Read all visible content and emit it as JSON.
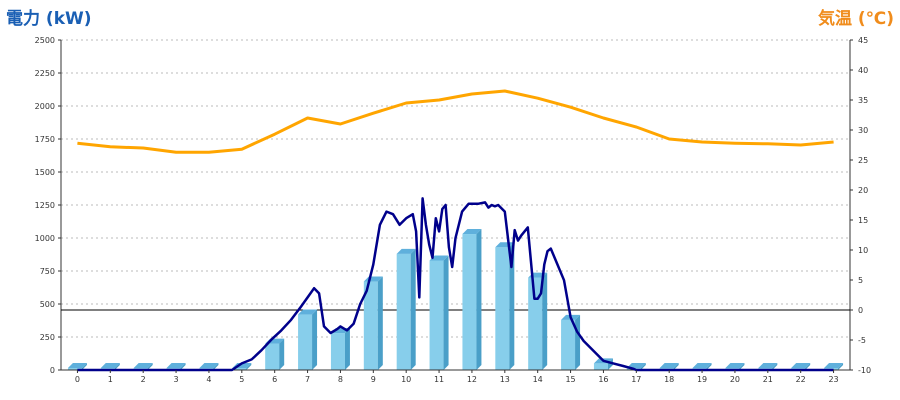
{
  "chart_data": {
    "type": "bar+line",
    "ylabel_left": "電力 (kW)",
    "ylabel_right": "気温 (℃)",
    "categories": [
      "0",
      "1",
      "2",
      "3",
      "4",
      "5",
      "6",
      "7",
      "8",
      "9",
      "10",
      "11",
      "12",
      "13",
      "14",
      "15",
      "16",
      "17",
      "18",
      "19",
      "20",
      "21",
      "22",
      "23"
    ],
    "y_left_ticks": [
      "0",
      "250",
      "500",
      "750",
      "1000",
      "1250",
      "1500",
      "1750",
      "2000",
      "2250",
      "2500"
    ],
    "y_right_ticks": [
      "-10",
      "-5",
      "0",
      "5",
      "10",
      "15",
      "20",
      "25",
      "30",
      "35",
      "40",
      "45"
    ],
    "ylim_left": [
      0,
      2500
    ],
    "ylim_right": [
      -10,
      45
    ],
    "grid": true,
    "series": [
      {
        "kind": "bar",
        "axis": "left",
        "values": [
          0,
          0,
          0,
          0,
          0,
          10,
          200,
          420,
          280,
          670,
          880,
          830,
          1030,
          930,
          700,
          380,
          50,
          0,
          0,
          0,
          0,
          0,
          0,
          0
        ]
      },
      {
        "kind": "line",
        "axis": "left",
        "x": [
          0,
          1,
          2,
          3,
          4,
          4.7,
          5,
          5.3,
          5.6,
          5.9,
          6.2,
          6.5,
          6.8,
          7.0,
          7.2,
          7.35,
          7.5,
          7.7,
          7.9,
          8.0,
          8.2,
          8.4,
          8.6,
          8.8,
          9.0,
          9.2,
          9.4,
          9.6,
          9.8,
          10.0,
          10.2,
          10.3,
          10.4,
          10.5,
          10.6,
          10.7,
          10.8,
          10.9,
          11.0,
          11.1,
          11.2,
          11.3,
          11.4,
          11.5,
          11.7,
          11.9,
          12.0,
          12.2,
          12.4,
          12.5,
          12.6,
          12.7,
          12.8,
          13.0,
          13.2,
          13.3,
          13.4,
          13.5,
          13.7,
          13.9,
          14.0,
          14.1,
          14.2,
          14.3,
          14.4,
          14.6,
          14.8,
          15.0,
          15.2,
          15.4,
          15.6,
          15.8,
          16.0,
          16.3,
          16.6,
          16.9,
          17.0,
          17.5,
          18,
          19,
          20,
          21,
          22,
          23
        ],
        "values": [
          0,
          0,
          0,
          0,
          0,
          0,
          50,
          80,
          150,
          230,
          300,
          380,
          480,
          550,
          620,
          580,
          330,
          280,
          310,
          330,
          300,
          350,
          500,
          600,
          800,
          1100,
          1200,
          1180,
          1100,
          1150,
          1180,
          1050,
          550,
          1300,
          1100,
          950,
          850,
          1150,
          1050,
          1220,
          1250,
          930,
          780,
          1000,
          1200,
          1260,
          1260,
          1260,
          1270,
          1230,
          1250,
          1240,
          1250,
          1200,
          780,
          1060,
          980,
          1020,
          1080,
          540,
          540,
          580,
          800,
          900,
          920,
          800,
          680,
          400,
          290,
          220,
          170,
          120,
          70,
          50,
          30,
          10,
          0,
          0,
          0,
          0,
          0,
          0,
          0,
          0
        ]
      },
      {
        "kind": "line",
        "axis": "right",
        "x": [
          0,
          1,
          2,
          3,
          4,
          5,
          6,
          7,
          8,
          9,
          10,
          11,
          12,
          13,
          14,
          15,
          16,
          17,
          18,
          19,
          20,
          21,
          22,
          23
        ],
        "values": [
          27.8,
          27.2,
          27.0,
          26.3,
          26.3,
          26.8,
          29.3,
          32.0,
          31.0,
          32.8,
          34.5,
          35.0,
          36.0,
          36.5,
          35.3,
          33.8,
          32.0,
          30.5,
          28.5,
          28.0,
          27.8,
          27.7,
          27.5,
          28.0
        ]
      }
    ],
    "colors": {
      "bar": "#87ceeb",
      "bar_side": "#4a9fc8",
      "bar_top": "#5fb0dc",
      "power_line": "#00008b",
      "temp_line": "#ffa500",
      "grid": "#bbbbbb",
      "axis": "#333333"
    }
  }
}
